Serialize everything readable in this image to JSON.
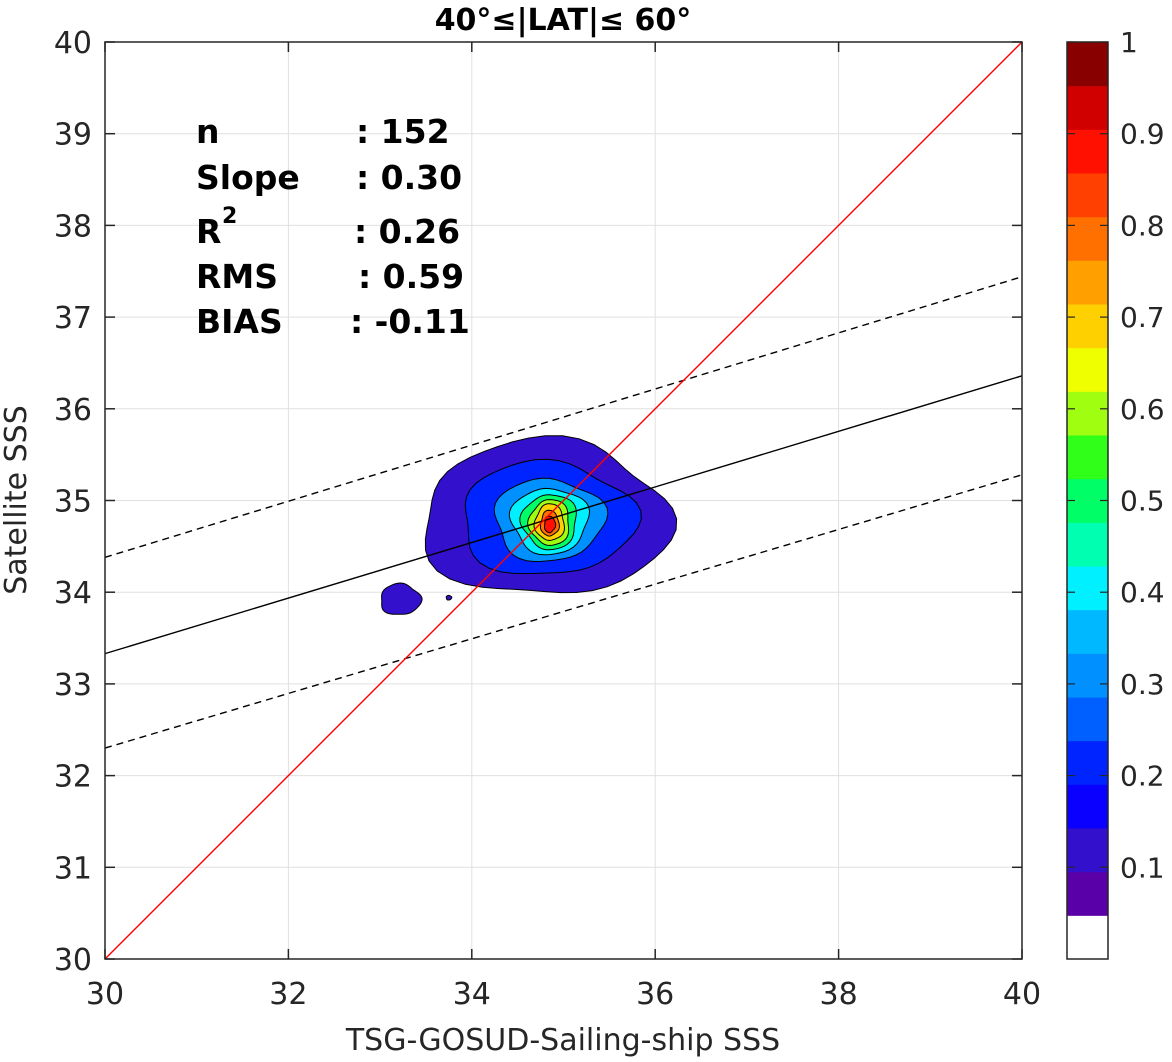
{
  "chart_data": {
    "type": "contour-scatter",
    "title": "40°≤|LAT|≤ 60°",
    "xlabel": "TSG-GOSUD-Sailing-ship SSS",
    "ylabel": "Satellite SSS",
    "xlim": [
      30,
      40
    ],
    "ylim": [
      30,
      40
    ],
    "xticks": [
      "30",
      "32",
      "34",
      "36",
      "38",
      "40"
    ],
    "yticks": [
      "30",
      "31",
      "32",
      "33",
      "34",
      "35",
      "36",
      "37",
      "38",
      "39",
      "40"
    ],
    "grid": true,
    "stats": {
      "n_label": "n",
      "n_value": ": 152",
      "slope_label": "Slope",
      "slope_value": ": 0.30",
      "r2_label": "R",
      "r2_sup": "2",
      "r2_value": ": 0.26",
      "rms_label": "RMS",
      "rms_value": ": 0.59",
      "bias_label": "BIAS",
      "bias_value": ": -0.11"
    },
    "lines": {
      "identity": {
        "x": [
          30,
          40
        ],
        "y": [
          30,
          40
        ],
        "color": "#ff0000"
      },
      "regression": {
        "x": [
          30,
          40
        ],
        "y": [
          33.33,
          36.36
        ],
        "color": "#000000"
      },
      "upper_bound": {
        "x": [
          30,
          40
        ],
        "y": [
          34.38,
          37.44
        ],
        "color": "#000000",
        "dash": true
      },
      "lower_bound": {
        "x": [
          30,
          40
        ],
        "y": [
          32.3,
          35.28
        ],
        "color": "#000000",
        "dash": true
      }
    },
    "density_peak": {
      "x": 34.85,
      "y": 34.75
    },
    "colorbar": {
      "range": [
        0,
        1
      ],
      "tick_values": [
        0.1,
        0.2,
        0.3,
        0.4,
        0.5,
        0.6,
        0.7,
        0.8,
        0.9,
        1
      ],
      "tick_labels": [
        "0.1",
        "0.2",
        "0.3",
        "0.4",
        "0.5",
        "0.6",
        "0.7",
        "0.8",
        "0.9",
        "1"
      ],
      "colors": [
        "#ffffff",
        "#5a00a8",
        "#3310cc",
        "#0a00ff",
        "#0024ff",
        "#0060ff",
        "#0090ff",
        "#00b8ff",
        "#00f0ff",
        "#00ffb0",
        "#00ff66",
        "#30ff1a",
        "#a0ff10",
        "#f0ff00",
        "#ffd000",
        "#ffa000",
        "#ff7000",
        "#ff4000",
        "#ff1000",
        "#d00000",
        "#880000"
      ]
    },
    "contours": [
      {
        "level": 0.1,
        "center": [
          34.8,
          34.8
        ],
        "rx": 1.35,
        "ry": 0.85
      },
      {
        "level": 0.2,
        "center": [
          34.82,
          34.8
        ],
        "rx": 0.95,
        "ry": 0.62
      },
      {
        "level": 0.3,
        "center": [
          34.84,
          34.79
        ],
        "rx": 0.6,
        "ry": 0.45
      },
      {
        "level": 0.4,
        "center": [
          34.85,
          34.78
        ],
        "rx": 0.42,
        "ry": 0.36
      },
      {
        "level": 0.5,
        "center": [
          34.85,
          34.77
        ],
        "rx": 0.3,
        "ry": 0.3
      },
      {
        "level": 0.6,
        "center": [
          34.85,
          34.76
        ],
        "rx": 0.22,
        "ry": 0.25
      },
      {
        "level": 0.7,
        "center": [
          34.85,
          34.76
        ],
        "rx": 0.16,
        "ry": 0.2
      },
      {
        "level": 0.8,
        "center": [
          34.85,
          34.75
        ],
        "rx": 0.1,
        "ry": 0.14
      },
      {
        "level": 0.9,
        "center": [
          34.85,
          34.74
        ],
        "rx": 0.06,
        "ry": 0.09
      }
    ],
    "outlier_blobs": [
      {
        "level": 0.1,
        "center": [
          33.22,
          33.92
        ],
        "rx": 0.22,
        "ry": 0.17
      },
      {
        "level": 0.1,
        "center": [
          33.75,
          33.94
        ],
        "rx": 0.03,
        "ry": 0.025
      }
    ]
  }
}
